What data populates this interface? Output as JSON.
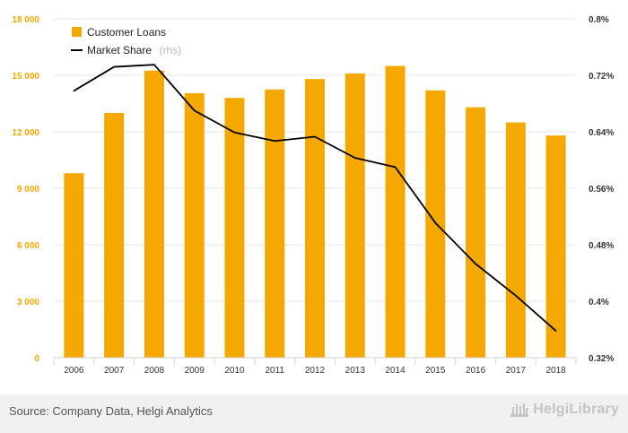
{
  "chart_data": {
    "type": "bar",
    "categories": [
      "2006",
      "2007",
      "2008",
      "2009",
      "2010",
      "2011",
      "2012",
      "2013",
      "2014",
      "2015",
      "2016",
      "2017",
      "2018"
    ],
    "series": [
      {
        "name": "Customer Loans",
        "type": "bar",
        "axis": "left",
        "color": "#f5a800",
        "values": [
          9800,
          13000,
          15250,
          14050,
          13800,
          14250,
          14800,
          15100,
          15500,
          14200,
          13300,
          12500,
          11800
        ]
      },
      {
        "name": "Market Share",
        "name_suffix": "(rhs)",
        "type": "line",
        "axis": "right",
        "color": "#000000",
        "values": [
          0.698,
          0.732,
          0.735,
          0.67,
          0.639,
          0.627,
          0.633,
          0.603,
          0.59,
          0.511,
          0.453,
          0.408,
          0.358
        ]
      }
    ],
    "ylim_left": [
      0,
      18000
    ],
    "yticks_left": [
      "0",
      "3 000",
      "6 000",
      "9 000",
      "12 000",
      "15 000",
      "18 000"
    ],
    "ylim_right": [
      0.32,
      0.8
    ],
    "yticks_right": [
      "0.32%",
      "0.4%",
      "0.48%",
      "0.56%",
      "0.64%",
      "0.72%",
      "0.8%"
    ],
    "grid": true,
    "legend_position": "top-left"
  },
  "footer": {
    "source": "Source: Company Data, Helgi Analytics",
    "logo_text": "HelgiLibrary"
  }
}
